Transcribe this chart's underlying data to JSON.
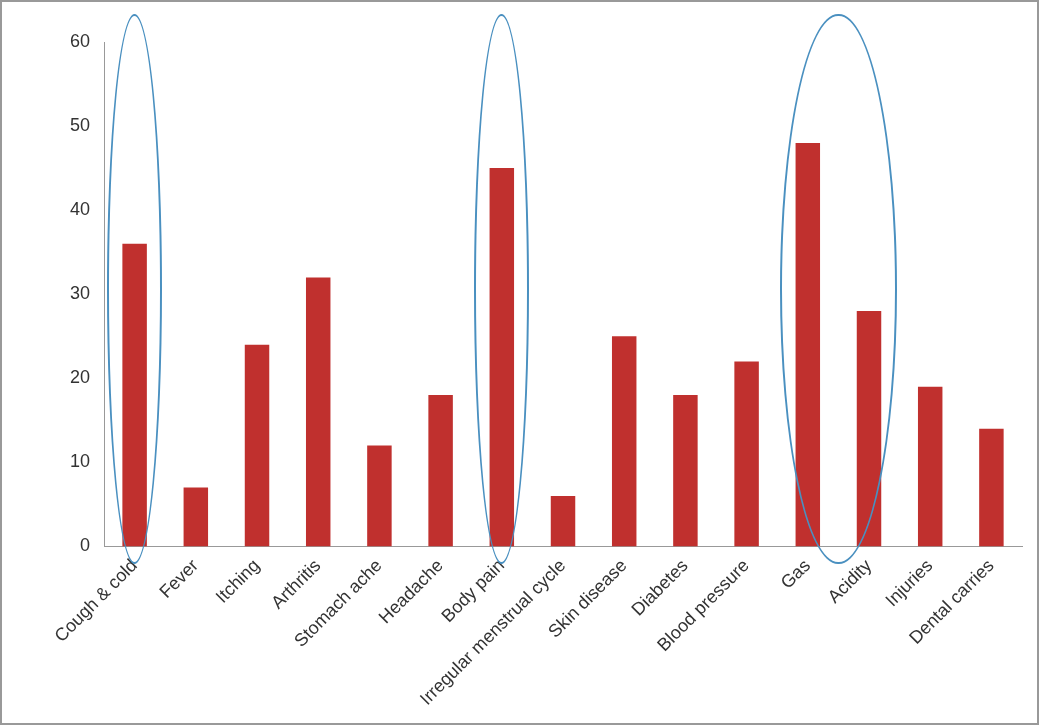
{
  "chart_data": {
    "type": "bar",
    "categories": [
      "Cough & cold",
      "Fever",
      "Itching",
      "Arthritis",
      "Stomach ache",
      "Headache",
      "Body pain",
      "Irregular menstrual cycle",
      "Skin disease",
      "Diabetes",
      "Blood pressure",
      "Gas",
      "Acidity",
      "Injuries",
      "Dental carries"
    ],
    "values": [
      36,
      7,
      24,
      32,
      12,
      18,
      45,
      6,
      25,
      18,
      22,
      48,
      28,
      19,
      14
    ],
    "color": "#c0302e",
    "ylim": [
      0,
      60
    ],
    "yticks": [
      0,
      10,
      20,
      30,
      40,
      50,
      60
    ],
    "grid": false,
    "legend": false
  }
}
